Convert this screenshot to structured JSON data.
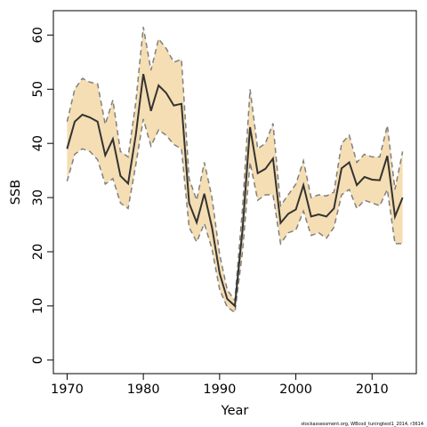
{
  "chart_data": {
    "type": "area",
    "title": "",
    "xlabel": "Year",
    "ylabel": "SSB",
    "xlim": [
      1968.2,
      2015.8
    ],
    "ylim": [
      -2.5,
      64.5
    ],
    "x_ticks": [
      1970,
      1980,
      1990,
      2000,
      2010
    ],
    "y_ticks": [
      0,
      10,
      20,
      30,
      40,
      50,
      60
    ],
    "grid": false,
    "legend": "none",
    "caption": "stockassessment.org,  WBcod_tuningtest1_2014, r3614",
    "colors": {
      "band": "#f5deb3",
      "band_edge": "#808080",
      "line": "#333333"
    },
    "x": [
      1970,
      1971,
      1972,
      1973,
      1974,
      1975,
      1976,
      1977,
      1978,
      1979,
      1980,
      1981,
      1982,
      1983,
      1984,
      1985,
      1986,
      1987,
      1988,
      1989,
      1990,
      1991,
      1992,
      1993,
      1994,
      1995,
      1996,
      1997,
      1998,
      1999,
      2000,
      2001,
      2002,
      2003,
      2004,
      2005,
      2006,
      2007,
      2008,
      2009,
      2010,
      2011,
      2012,
      2013,
      2014
    ],
    "series": [
      {
        "values": [
          39.0,
          44.0,
          45.3,
          44.8,
          44.0,
          37.8,
          40.8,
          34.0,
          32.6,
          41.5,
          52.8,
          46.0,
          50.7,
          49.3,
          47.0,
          47.3,
          29.0,
          25.4,
          30.7,
          24.5,
          16.0,
          11.3,
          10.0,
          24.0,
          43.0,
          34.5,
          35.3,
          37.2,
          25.3,
          27.0,
          27.8,
          32.3,
          26.5,
          26.9,
          26.5,
          28.0,
          35.4,
          36.5,
          32.3,
          33.8,
          33.3,
          33.2,
          37.7,
          26.5,
          30.0
        ]
      },
      {
        "values": [
          44.0,
          50.0,
          52.0,
          51.3,
          51.0,
          43.5,
          48.0,
          38.5,
          37.5,
          47.5,
          61.5,
          53.5,
          59.3,
          57.5,
          55.0,
          55.5,
          33.5,
          29.5,
          36.5,
          30.0,
          19.5,
          13.0,
          11.0,
          28.0,
          50.0,
          39.0,
          40.0,
          43.7,
          28.5,
          30.5,
          32.5,
          36.8,
          30.0,
          30.5,
          30.3,
          31.0,
          40.0,
          41.5,
          36.5,
          38.0,
          37.5,
          37.5,
          43.3,
          31.5,
          38.5
        ]
      },
      {
        "values": [
          33.0,
          38.0,
          39.0,
          38.5,
          37.0,
          32.5,
          33.5,
          29.0,
          28.0,
          36.0,
          44.5,
          39.5,
          42.5,
          41.5,
          39.8,
          39.0,
          24.5,
          21.8,
          25.2,
          20.5,
          13.0,
          9.8,
          8.8,
          20.0,
          36.5,
          29.5,
          30.5,
          30.5,
          21.5,
          23.5,
          24.0,
          27.5,
          23.0,
          23.5,
          22.5,
          24.5,
          30.5,
          31.5,
          28.0,
          29.5,
          29.0,
          28.5,
          31.5,
          21.5,
          21.5
        ]
      }
    ]
  }
}
